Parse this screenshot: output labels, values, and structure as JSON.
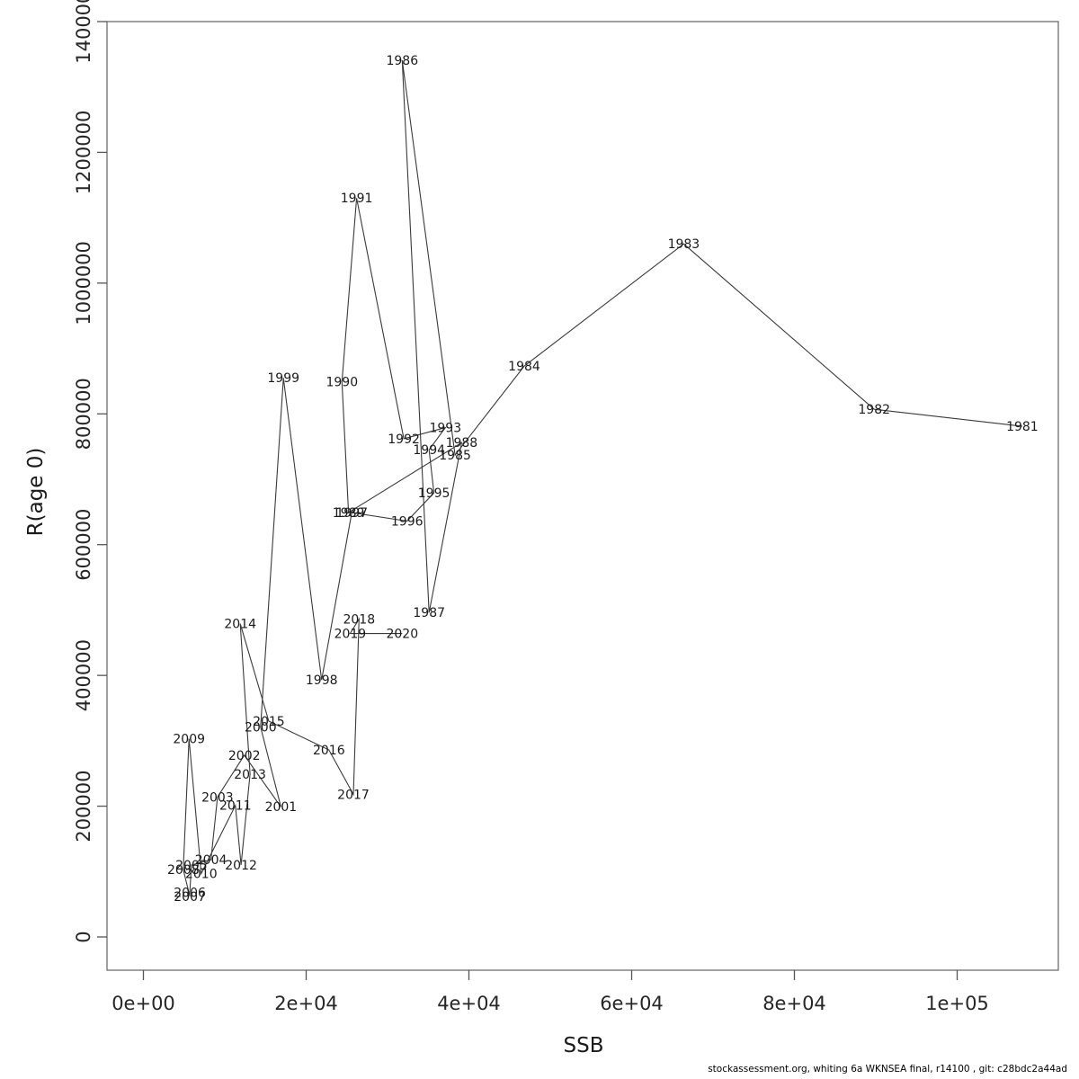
{
  "chart_data": {
    "type": "scatter",
    "title": "",
    "xlabel": "SSB",
    "ylabel": "R(age 0)",
    "xlim": [
      0,
      112500
    ],
    "ylim": [
      0,
      1400000
    ],
    "grid": false,
    "legend": "none",
    "point_label_color": "#ff0000",
    "line_color": "#3a3a3a",
    "x_ticks": [
      {
        "value": 0,
        "label": "0e+00"
      },
      {
        "value": 20000,
        "label": "2e+04"
      },
      {
        "value": 40000,
        "label": "4e+04"
      },
      {
        "value": 60000,
        "label": "6e+04"
      },
      {
        "value": 80000,
        "label": "8e+04"
      },
      {
        "value": 100000,
        "label": "1e+05"
      }
    ],
    "y_ticks": [
      {
        "value": 0,
        "label": "0"
      },
      {
        "value": 200000,
        "label": "200000"
      },
      {
        "value": 400000,
        "label": "400000"
      },
      {
        "value": 600000,
        "label": "600000"
      },
      {
        "value": 800000,
        "label": "800000"
      },
      {
        "value": 1000000,
        "label": "1000000"
      },
      {
        "value": 1200000,
        "label": "1200000"
      },
      {
        "value": 1400000,
        "label": "1400000"
      }
    ],
    "points": [
      {
        "year": "1981",
        "ssb": 108000,
        "r": 781000
      },
      {
        "year": "1982",
        "ssb": 89800,
        "r": 807000
      },
      {
        "year": "1983",
        "ssb": 66400,
        "r": 1060000
      },
      {
        "year": "1984",
        "ssb": 46800,
        "r": 873000
      },
      {
        "year": "1985",
        "ssb": 38300,
        "r": 737000
      },
      {
        "year": "1986",
        "ssb": 31800,
        "r": 1341000
      },
      {
        "year": "1987",
        "ssb": 35100,
        "r": 496000
      },
      {
        "year": "1988",
        "ssb": 39100,
        "r": 756000
      },
      {
        "year": "1989",
        "ssb": 25200,
        "r": 649000
      },
      {
        "year": "1990",
        "ssb": 24400,
        "r": 849000
      },
      {
        "year": "1991",
        "ssb": 26200,
        "r": 1130000
      },
      {
        "year": "1992",
        "ssb": 32000,
        "r": 762000
      },
      {
        "year": "1993",
        "ssb": 37100,
        "r": 779000
      },
      {
        "year": "1994",
        "ssb": 35100,
        "r": 745000
      },
      {
        "year": "1995",
        "ssb": 35700,
        "r": 679000
      },
      {
        "year": "1996",
        "ssb": 32400,
        "r": 636000
      },
      {
        "year": "1997",
        "ssb": 25600,
        "r": 649000
      },
      {
        "year": "1998",
        "ssb": 21900,
        "r": 393000
      },
      {
        "year": "1999",
        "ssb": 17200,
        "r": 855000
      },
      {
        "year": "2000",
        "ssb": 14400,
        "r": 321000
      },
      {
        "year": "2001",
        "ssb": 16900,
        "r": 199000
      },
      {
        "year": "2002",
        "ssb": 12400,
        "r": 278000
      },
      {
        "year": "2003",
        "ssb": 9100,
        "r": 214000
      },
      {
        "year": "2004",
        "ssb": 8300,
        "r": 118000
      },
      {
        "year": "2005",
        "ssb": 5900,
        "r": 110000
      },
      {
        "year": "2006",
        "ssb": 5700,
        "r": 68000
      },
      {
        "year": "2007",
        "ssb": 5700,
        "r": 62000
      },
      {
        "year": "2008",
        "ssb": 4900,
        "r": 103000
      },
      {
        "year": "2009",
        "ssb": 5600,
        "r": 303000
      },
      {
        "year": "2010",
        "ssb": 7100,
        "r": 97000
      },
      {
        "year": "2011",
        "ssb": 11300,
        "r": 201000
      },
      {
        "year": "2012",
        "ssb": 12000,
        "r": 110000
      },
      {
        "year": "2013",
        "ssb": 13100,
        "r": 249000
      },
      {
        "year": "2014",
        "ssb": 11900,
        "r": 479000
      },
      {
        "year": "2015",
        "ssb": 15400,
        "r": 330000
      },
      {
        "year": "2016",
        "ssb": 22800,
        "r": 286000
      },
      {
        "year": "2017",
        "ssb": 25800,
        "r": 218000
      },
      {
        "year": "2018",
        "ssb": 26500,
        "r": 486000
      },
      {
        "year": "2019",
        "ssb": 25400,
        "r": 464000
      },
      {
        "year": "2020",
        "ssb": 31800,
        "r": 464000
      }
    ]
  },
  "axis_titles": {
    "x": "SSB",
    "y": "R(age 0)"
  },
  "footer": {
    "credit": "stockassessment.org, whiting 6a WKNSEA final, r14100 , git: c28bdc2a44ad"
  }
}
